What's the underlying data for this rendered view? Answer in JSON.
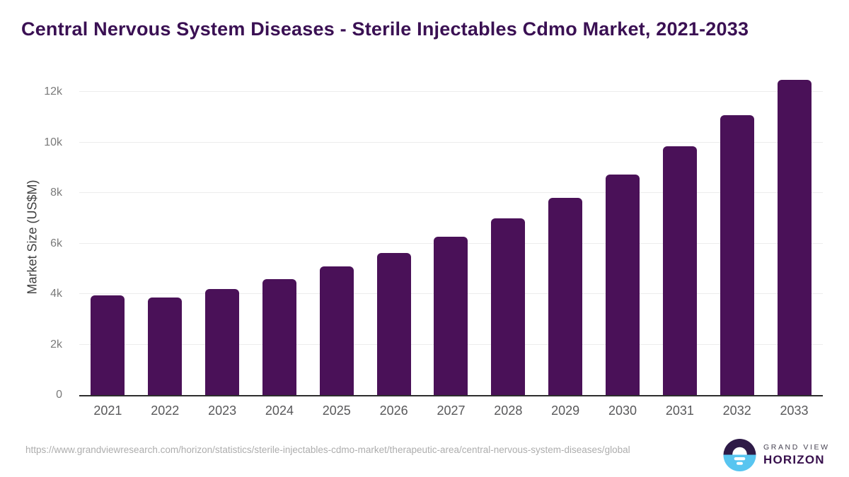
{
  "page": {
    "title": "Central Nervous System Diseases - Sterile Injectables Cdmo Market, 2021-2033",
    "source_url": "https://www.grandviewresearch.com/horizon/statistics/sterile-injectables-cdmo-market/therapeutic-area/central-nervous-system-diseases/global"
  },
  "logo": {
    "icon": "sunrise-horizon-icon",
    "brand_top": "GRAND VIEW",
    "brand_bottom": "HORIZON",
    "colors": {
      "circle_dark_purple": "#2e1a47",
      "circle_light_blue": "#58c5f0",
      "text_gray": "#474352",
      "text_purple": "#38104d"
    }
  },
  "chart_data": {
    "type": "bar",
    "title": "Central Nervous System Diseases - Sterile Injectables Cdmo Market, 2021-2033",
    "series_name": "Market Size",
    "categories": [
      "2021",
      "2022",
      "2023",
      "2024",
      "2025",
      "2026",
      "2027",
      "2028",
      "2029",
      "2030",
      "2031",
      "2032",
      "2033"
    ],
    "values": [
      3950,
      3870,
      4210,
      4600,
      5100,
      5620,
      6270,
      7000,
      7820,
      8740,
      9850,
      11080,
      12500
    ],
    "xlabel": "",
    "ylabel": "Market Size (US$M)",
    "ylim": [
      0,
      12600
    ],
    "ytick_values": [
      0,
      2000,
      4000,
      6000,
      8000,
      10000,
      12000
    ],
    "ytick_labels": [
      "0",
      "2k",
      "4k",
      "6k",
      "8k",
      "10k",
      "12k"
    ],
    "grid": "horizontal-only",
    "legend": false,
    "bar_color": "#4a1158",
    "gridline_color": "#ececec",
    "axis_line_color": "#2d2d2d"
  }
}
